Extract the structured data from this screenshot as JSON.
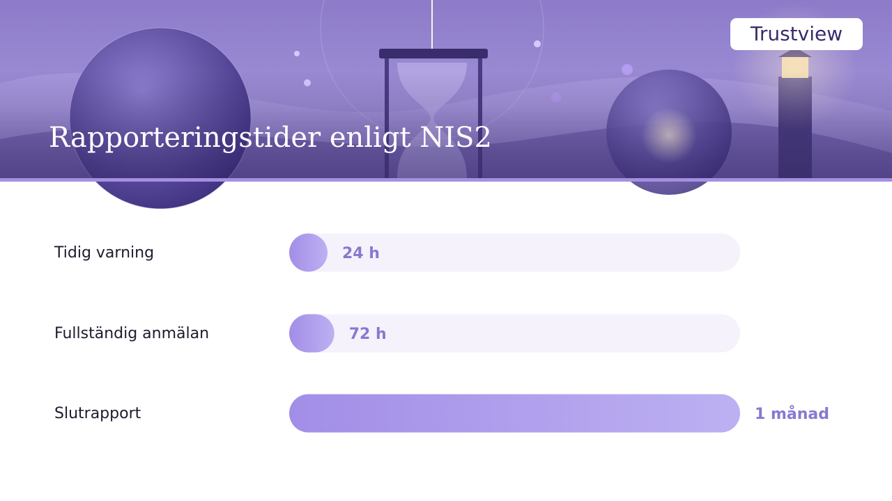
{
  "logo": "Trustview",
  "chart_data": {
    "type": "bar",
    "orientation": "horizontal",
    "title": "Rapporteringstider enligt NIS2",
    "categories": [
      "Tidig varning",
      "Fullständig anmälan",
      "Slutrapport"
    ],
    "values": [
      24,
      72,
      720
    ],
    "value_labels": [
      "24 h",
      "72 h",
      "1 månad"
    ],
    "xlim": [
      0,
      720
    ],
    "color": "#a895ea"
  }
}
